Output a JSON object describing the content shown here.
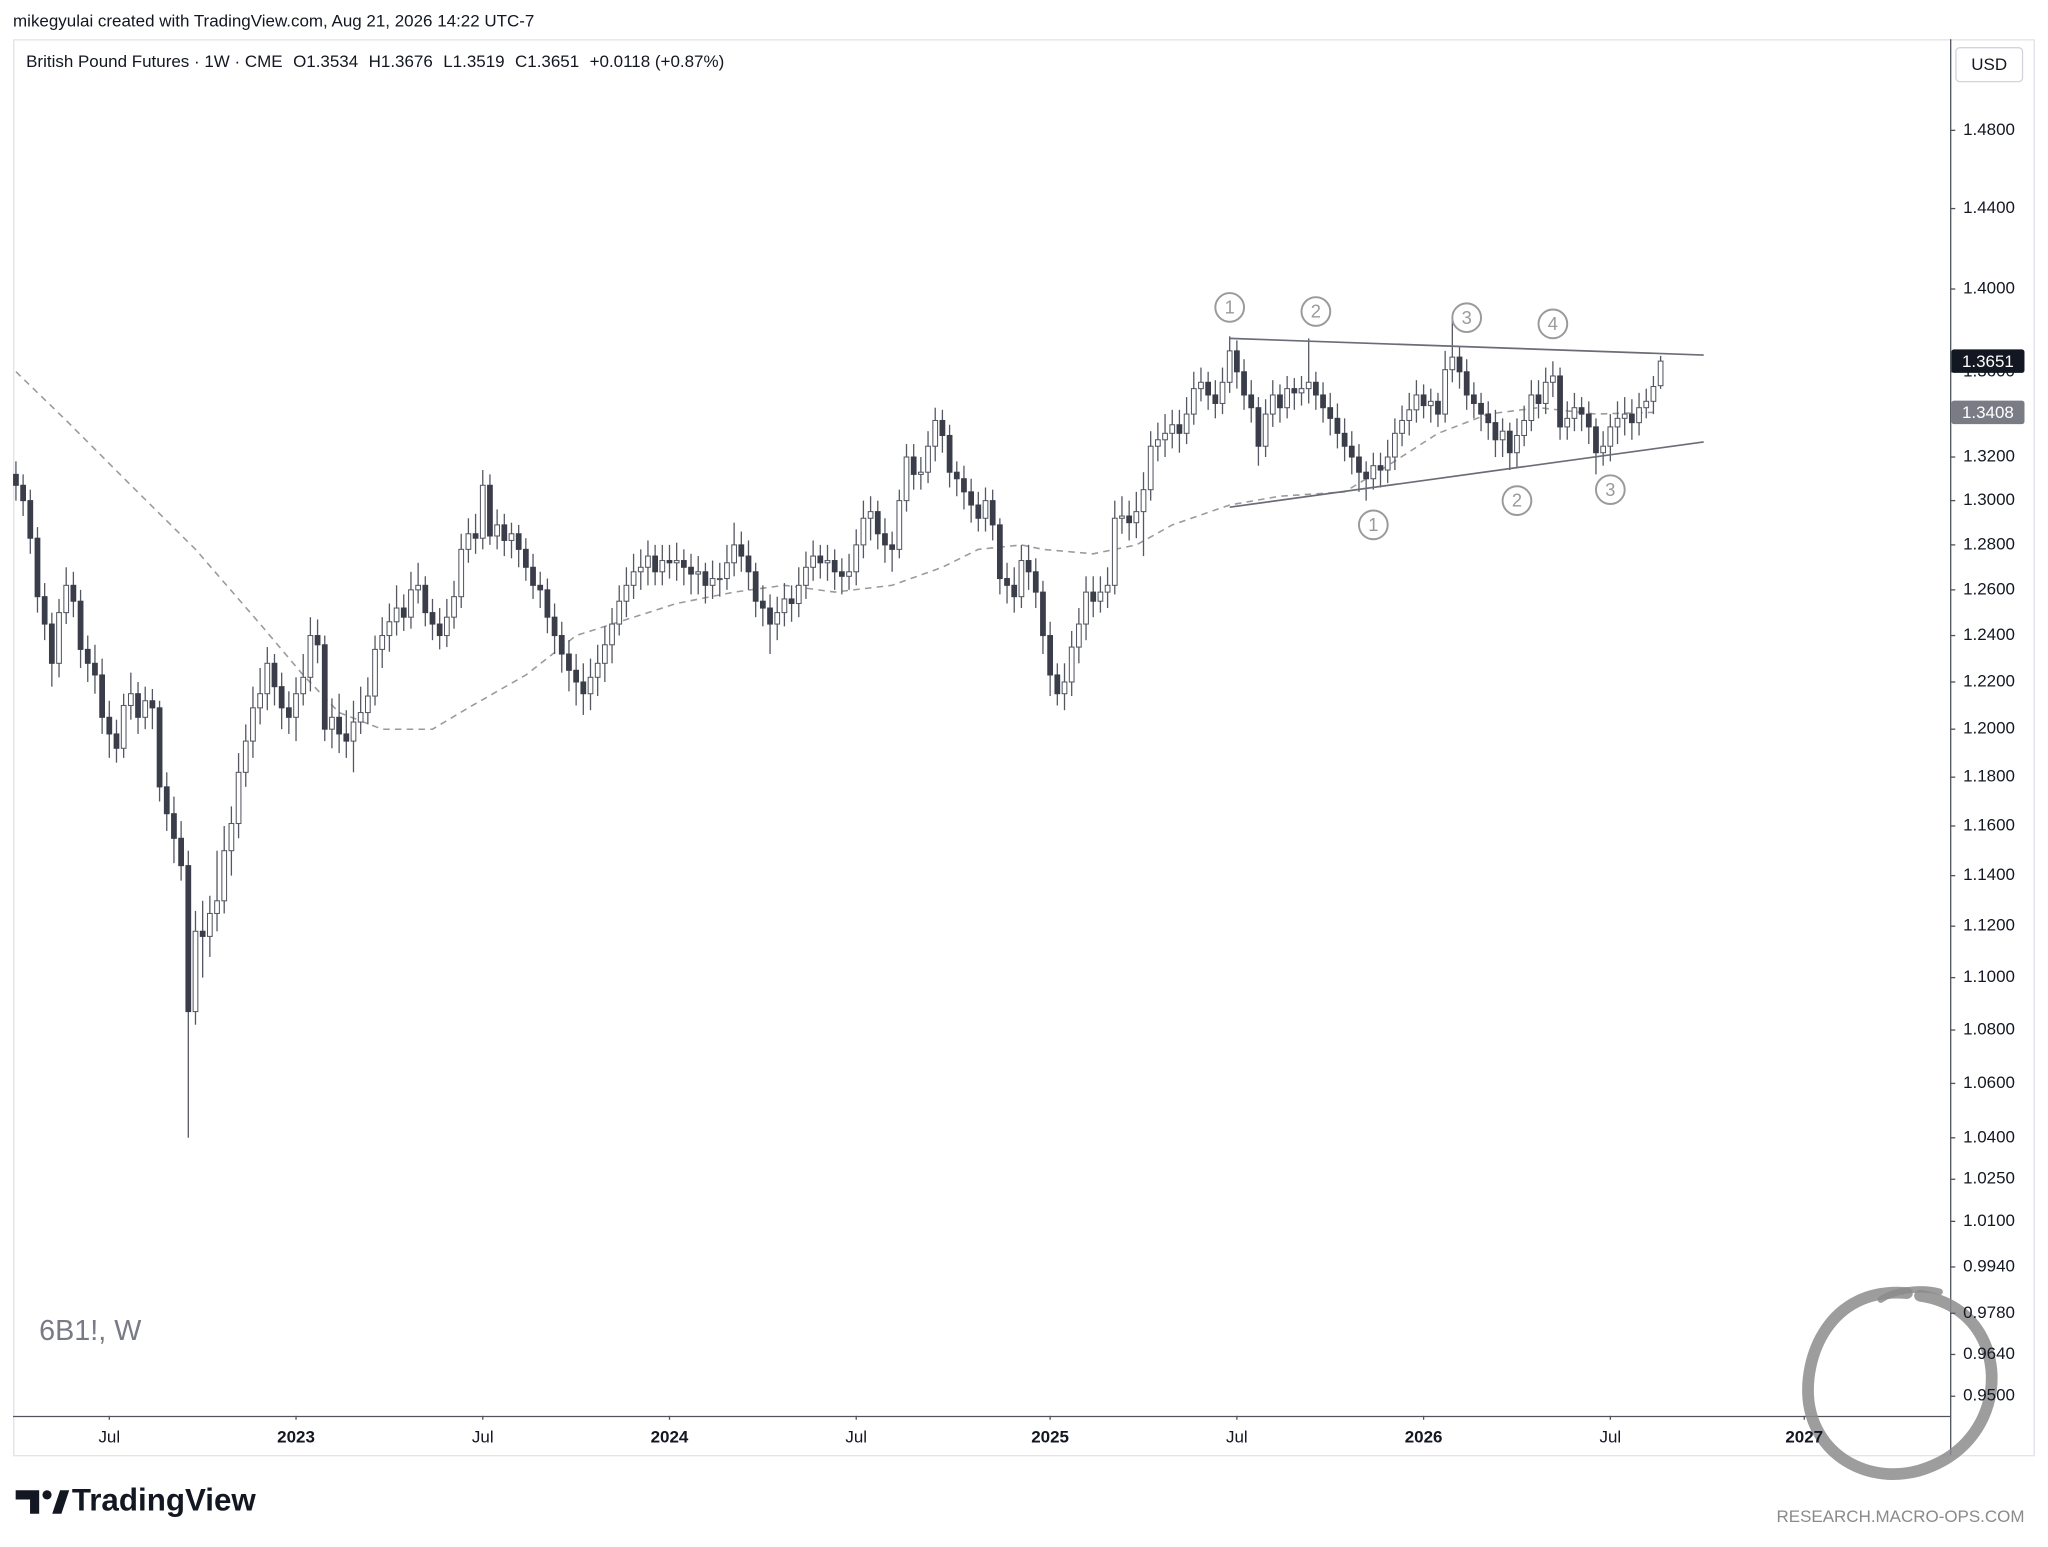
{
  "header": "mikegyulai created with TradingView.com, Aug 21, 2026 14:22 UTC-7",
  "branding": "TradingView",
  "footer": "RESEARCH.MACRO-OPS.COM",
  "chart_data": {
    "type": "candlestick",
    "title": "British Pound Futures · 1W · CME",
    "legend_values": [
      "O1.3534",
      "H1.3676",
      "L1.3519",
      "C1.3651",
      "+0.0118 (+0.87%)"
    ],
    "currency": "USD",
    "watermark": "6B1!, W",
    "up_color": "#ffffff",
    "down_color": "#3a3d4a",
    "log_scale": true,
    "grid": false,
    "ylim": [
      0.9435,
      1.528
    ],
    "yticks": [
      {
        "value": 1.48,
        "label": "1.4800"
      },
      {
        "value": 1.44,
        "label": "1.4400"
      },
      {
        "value": 1.4,
        "label": "1.4000"
      },
      {
        "value": 1.36,
        "label": "1.3600"
      },
      {
        "value": 1.32,
        "label": "1.3200"
      },
      {
        "value": 1.3,
        "label": "1.3000"
      },
      {
        "value": 1.28,
        "label": "1.2800"
      },
      {
        "value": 1.26,
        "label": "1.2600"
      },
      {
        "value": 1.24,
        "label": "1.2400"
      },
      {
        "value": 1.22,
        "label": "1.2200"
      },
      {
        "value": 1.2,
        "label": "1.2000"
      },
      {
        "value": 1.18,
        "label": "1.1800"
      },
      {
        "value": 1.16,
        "label": "1.1600"
      },
      {
        "value": 1.14,
        "label": "1.1400"
      },
      {
        "value": 1.12,
        "label": "1.1200"
      },
      {
        "value": 1.1,
        "label": "1.1000"
      },
      {
        "value": 1.08,
        "label": "1.0800"
      },
      {
        "value": 1.06,
        "label": "1.0600"
      },
      {
        "value": 1.04,
        "label": "1.0400"
      },
      {
        "value": 1.025,
        "label": "1.0250"
      },
      {
        "value": 1.01,
        "label": "1.0100"
      },
      {
        "value": 0.994,
        "label": "0.9940"
      },
      {
        "value": 0.978,
        "label": "0.9780"
      },
      {
        "value": 0.964,
        "label": "0.9640"
      },
      {
        "value": 0.95,
        "label": "0.9500"
      }
    ],
    "xlim": [
      -0.4,
      269.3
    ],
    "xticks": [
      {
        "value": 13,
        "label": "Jul"
      },
      {
        "value": 39,
        "label": "2023"
      },
      {
        "value": 65,
        "label": "Jul"
      },
      {
        "value": 91,
        "label": "2024"
      },
      {
        "value": 117,
        "label": "Jul"
      },
      {
        "value": 144,
        "label": "2025"
      },
      {
        "value": 170,
        "label": "Jul"
      },
      {
        "value": 196,
        "label": "2026"
      },
      {
        "value": 222,
        "label": "Jul"
      },
      {
        "value": 249,
        "label": "2027"
      }
    ],
    "open": [
      1.312,
      1.307,
      1.3,
      1.283,
      1.257,
      1.245,
      1.228,
      1.25,
      1.262,
      1.255,
      1.234,
      1.228,
      1.223,
      1.205,
      1.198,
      1.192,
      1.21,
      1.215,
      1.205,
      1.212,
      1.209,
      1.176,
      1.165,
      1.155,
      1.144,
      1.087,
      1.118,
      1.116,
      1.125,
      1.13,
      1.15,
      1.161,
      1.182,
      1.195,
      1.209,
      1.215,
      1.228,
      1.218,
      1.209,
      1.205,
      1.215,
      1.222,
      1.24,
      1.236,
      1.2,
      1.205,
      1.198,
      1.195,
      1.203,
      1.207,
      1.214,
      1.234,
      1.24,
      1.246,
      1.252,
      1.248,
      1.26,
      1.262,
      1.25,
      1.245,
      1.24,
      1.248,
      1.257,
      1.278,
      1.285,
      1.283,
      1.307,
      1.284,
      1.289,
      1.282,
      1.285,
      1.278,
      1.27,
      1.262,
      1.26,
      1.248,
      1.24,
      1.232,
      1.225,
      1.22,
      1.215,
      1.222,
      1.228,
      1.236,
      1.245,
      1.255,
      1.262,
      1.268,
      1.27,
      1.275,
      1.268,
      1.273,
      1.272,
      1.273,
      1.27,
      1.267,
      1.268,
      1.262,
      1.265,
      1.265,
      1.272,
      1.28,
      1.275,
      1.268,
      1.255,
      1.252,
      1.245,
      1.25,
      1.256,
      1.254,
      1.262,
      1.27,
      1.275,
      1.272,
      1.273,
      1.268,
      1.266,
      1.268,
      1.28,
      1.292,
      1.295,
      1.285,
      1.28,
      1.278,
      1.3,
      1.32,
      1.312,
      1.313,
      1.325,
      1.337,
      1.33,
      1.313,
      1.31,
      1.304,
      1.298,
      1.292,
      1.3,
      1.289,
      1.265,
      1.262,
      1.257,
      1.273,
      1.268,
      1.259,
      1.24,
      1.223,
      1.215,
      1.22,
      1.235,
      1.245,
      1.259,
      1.255,
      1.259,
      1.262,
      1.292,
      1.293,
      1.29,
      1.295,
      1.305,
      1.325,
      1.328,
      1.331,
      1.335,
      1.331,
      1.34,
      1.352,
      1.355,
      1.349,
      1.345,
      1.355,
      1.37,
      1.36,
      1.349,
      1.343,
      1.325,
      1.34,
      1.349,
      1.343,
      1.352,
      1.35,
      1.352,
      1.355,
      1.349,
      1.343,
      1.338,
      1.331,
      1.325,
      1.32,
      1.313,
      1.31,
      1.316,
      1.314,
      1.32,
      1.331,
      1.337,
      1.342,
      1.349,
      1.344,
      1.346,
      1.34,
      1.361,
      1.367,
      1.36,
      1.349,
      1.345,
      1.34,
      1.336,
      1.328,
      1.332,
      1.322,
      1.33,
      1.337,
      1.349,
      1.345,
      1.355,
      1.358,
      1.334,
      1.338,
      1.343,
      1.34,
      1.334,
      1.322,
      1.325,
      1.334,
      1.338,
      1.34,
      1.336,
      1.343,
      1.346,
      1.3534
    ],
    "high": [
      1.318,
      1.312,
      1.305,
      1.288,
      1.263,
      1.25,
      1.256,
      1.27,
      1.268,
      1.26,
      1.24,
      1.236,
      1.23,
      1.212,
      1.204,
      1.215,
      1.224,
      1.22,
      1.218,
      1.217,
      1.212,
      1.182,
      1.172,
      1.162,
      1.15,
      1.126,
      1.13,
      1.132,
      1.15,
      1.16,
      1.168,
      1.19,
      1.202,
      1.218,
      1.226,
      1.235,
      1.232,
      1.224,
      1.216,
      1.222,
      1.232,
      1.248,
      1.247,
      1.24,
      1.213,
      1.215,
      1.208,
      1.212,
      1.218,
      1.222,
      1.24,
      1.248,
      1.254,
      1.262,
      1.258,
      1.268,
      1.272,
      1.266,
      1.256,
      1.252,
      1.256,
      1.264,
      1.285,
      1.292,
      1.294,
      1.314,
      1.312,
      1.296,
      1.294,
      1.29,
      1.289,
      1.283,
      1.276,
      1.268,
      1.265,
      1.254,
      1.246,
      1.238,
      1.232,
      1.228,
      1.23,
      1.236,
      1.244,
      1.252,
      1.262,
      1.27,
      1.276,
      1.278,
      1.282,
      1.28,
      1.28,
      1.28,
      1.281,
      1.278,
      1.276,
      1.275,
      1.272,
      1.273,
      1.272,
      1.28,
      1.29,
      1.286,
      1.282,
      1.272,
      1.262,
      1.258,
      1.257,
      1.263,
      1.262,
      1.27,
      1.277,
      1.282,
      1.28,
      1.28,
      1.278,
      1.274,
      1.276,
      1.287,
      1.3,
      1.302,
      1.3,
      1.292,
      1.286,
      1.305,
      1.326,
      1.326,
      1.32,
      1.332,
      1.343,
      1.342,
      1.335,
      1.318,
      1.316,
      1.31,
      1.304,
      1.306,
      1.305,
      1.292,
      1.272,
      1.27,
      1.28,
      1.28,
      1.274,
      1.264,
      1.246,
      1.228,
      1.228,
      1.242,
      1.252,
      1.266,
      1.266,
      1.266,
      1.27,
      1.3,
      1.302,
      1.3,
      1.304,
      1.313,
      1.332,
      1.336,
      1.34,
      1.342,
      1.342,
      1.348,
      1.36,
      1.362,
      1.36,
      1.356,
      1.362,
      1.377,
      1.375,
      1.366,
      1.356,
      1.348,
      1.347,
      1.356,
      1.354,
      1.358,
      1.357,
      1.358,
      1.376,
      1.36,
      1.355,
      1.35,
      1.345,
      1.338,
      1.332,
      1.326,
      1.318,
      1.322,
      1.322,
      1.328,
      1.338,
      1.344,
      1.35,
      1.356,
      1.354,
      1.352,
      1.35,
      1.37,
      1.385,
      1.372,
      1.366,
      1.355,
      1.35,
      1.346,
      1.342,
      1.338,
      1.336,
      1.338,
      1.344,
      1.356,
      1.356,
      1.362,
      1.365,
      1.362,
      1.346,
      1.35,
      1.348,
      1.346,
      1.338,
      1.332,
      1.34,
      1.346,
      1.348,
      1.347,
      1.35,
      1.352,
      1.358,
      1.3676
    ],
    "low": [
      1.3,
      1.293,
      1.276,
      1.25,
      1.238,
      1.218,
      1.222,
      1.245,
      1.248,
      1.226,
      1.22,
      1.215,
      1.198,
      1.188,
      1.186,
      1.188,
      1.204,
      1.198,
      1.2,
      1.2,
      1.17,
      1.158,
      1.145,
      1.138,
      1.04,
      1.082,
      1.1,
      1.108,
      1.118,
      1.125,
      1.14,
      1.155,
      1.176,
      1.188,
      1.202,
      1.208,
      1.21,
      1.2,
      1.198,
      1.195,
      1.21,
      1.216,
      1.228,
      1.195,
      1.192,
      1.19,
      1.188,
      1.182,
      1.198,
      1.202,
      1.21,
      1.226,
      1.233,
      1.24,
      1.242,
      1.243,
      1.254,
      1.244,
      1.238,
      1.234,
      1.235,
      1.243,
      1.252,
      1.272,
      1.276,
      1.278,
      1.28,
      1.278,
      1.275,
      1.274,
      1.27,
      1.264,
      1.256,
      1.252,
      1.241,
      1.232,
      1.224,
      1.216,
      1.21,
      1.206,
      1.208,
      1.214,
      1.22,
      1.228,
      1.24,
      1.248,
      1.256,
      1.26,
      1.262,
      1.262,
      1.262,
      1.265,
      1.264,
      1.262,
      1.258,
      1.258,
      1.254,
      1.256,
      1.257,
      1.26,
      1.266,
      1.268,
      1.26,
      1.248,
      1.244,
      1.232,
      1.238,
      1.244,
      1.246,
      1.248,
      1.256,
      1.264,
      1.265,
      1.264,
      1.26,
      1.258,
      1.26,
      1.262,
      1.274,
      1.282,
      1.278,
      1.272,
      1.268,
      1.274,
      1.295,
      1.305,
      1.305,
      1.308,
      1.318,
      1.322,
      1.306,
      1.302,
      1.296,
      1.29,
      1.286,
      1.286,
      1.282,
      1.258,
      1.254,
      1.25,
      1.252,
      1.26,
      1.252,
      1.232,
      1.214,
      1.21,
      1.208,
      1.214,
      1.228,
      1.238,
      1.248,
      1.25,
      1.252,
      1.258,
      1.285,
      1.282,
      1.283,
      1.275,
      1.3,
      1.318,
      1.32,
      1.324,
      1.322,
      1.326,
      1.335,
      1.346,
      1.342,
      1.338,
      1.34,
      1.35,
      1.352,
      1.342,
      1.336,
      1.316,
      1.32,
      1.334,
      1.336,
      1.338,
      1.342,
      1.344,
      1.345,
      1.342,
      1.336,
      1.33,
      1.324,
      1.318,
      1.312,
      1.304,
      1.3,
      1.305,
      1.306,
      1.308,
      1.314,
      1.325,
      1.33,
      1.336,
      1.338,
      1.336,
      1.334,
      1.336,
      1.355,
      1.352,
      1.342,
      1.338,
      1.332,
      1.328,
      1.32,
      1.32,
      1.314,
      1.315,
      1.325,
      1.332,
      1.338,
      1.34,
      1.348,
      1.328,
      1.328,
      1.332,
      1.332,
      1.326,
      1.312,
      1.316,
      1.318,
      1.326,
      1.33,
      1.328,
      1.33,
      1.338,
      1.34,
      1.3519
    ],
    "close": [
      1.307,
      1.3,
      1.283,
      1.257,
      1.245,
      1.228,
      1.25,
      1.262,
      1.255,
      1.234,
      1.228,
      1.223,
      1.205,
      1.198,
      1.192,
      1.21,
      1.215,
      1.205,
      1.212,
      1.209,
      1.176,
      1.165,
      1.155,
      1.144,
      1.087,
      1.118,
      1.116,
      1.125,
      1.13,
      1.15,
      1.161,
      1.182,
      1.195,
      1.209,
      1.215,
      1.228,
      1.218,
      1.209,
      1.205,
      1.215,
      1.222,
      1.24,
      1.236,
      1.2,
      1.205,
      1.198,
      1.195,
      1.203,
      1.207,
      1.214,
      1.234,
      1.24,
      1.246,
      1.252,
      1.248,
      1.26,
      1.262,
      1.25,
      1.245,
      1.24,
      1.248,
      1.257,
      1.278,
      1.285,
      1.283,
      1.307,
      1.284,
      1.289,
      1.282,
      1.285,
      1.278,
      1.27,
      1.262,
      1.26,
      1.248,
      1.24,
      1.232,
      1.225,
      1.22,
      1.215,
      1.222,
      1.228,
      1.236,
      1.245,
      1.255,
      1.262,
      1.268,
      1.27,
      1.275,
      1.268,
      1.273,
      1.272,
      1.273,
      1.27,
      1.267,
      1.268,
      1.262,
      1.265,
      1.265,
      1.272,
      1.28,
      1.275,
      1.268,
      1.255,
      1.252,
      1.245,
      1.25,
      1.256,
      1.254,
      1.262,
      1.27,
      1.275,
      1.272,
      1.273,
      1.268,
      1.266,
      1.268,
      1.28,
      1.292,
      1.295,
      1.285,
      1.28,
      1.278,
      1.3,
      1.32,
      1.312,
      1.313,
      1.325,
      1.337,
      1.33,
      1.313,
      1.31,
      1.304,
      1.298,
      1.292,
      1.3,
      1.289,
      1.265,
      1.262,
      1.257,
      1.273,
      1.268,
      1.259,
      1.24,
      1.223,
      1.215,
      1.22,
      1.235,
      1.245,
      1.259,
      1.255,
      1.259,
      1.262,
      1.292,
      1.293,
      1.29,
      1.295,
      1.305,
      1.325,
      1.328,
      1.331,
      1.335,
      1.331,
      1.34,
      1.352,
      1.355,
      1.349,
      1.345,
      1.355,
      1.37,
      1.36,
      1.349,
      1.343,
      1.325,
      1.34,
      1.349,
      1.343,
      1.352,
      1.35,
      1.352,
      1.355,
      1.349,
      1.343,
      1.338,
      1.331,
      1.325,
      1.32,
      1.313,
      1.31,
      1.316,
      1.314,
      1.32,
      1.331,
      1.337,
      1.342,
      1.349,
      1.344,
      1.346,
      1.34,
      1.361,
      1.367,
      1.36,
      1.349,
      1.345,
      1.34,
      1.336,
      1.328,
      1.332,
      1.322,
      1.33,
      1.337,
      1.349,
      1.345,
      1.355,
      1.358,
      1.334,
      1.338,
      1.343,
      1.34,
      1.334,
      1.322,
      1.325,
      1.334,
      1.338,
      1.34,
      1.336,
      1.343,
      1.346,
      1.353,
      1.3651
    ],
    "moving_average": {
      "color": "#9a9a9a",
      "x": [
        0,
        7,
        16,
        25,
        34,
        40,
        45,
        51,
        58,
        63,
        71,
        78,
        85,
        92,
        100,
        107,
        114,
        122,
        129,
        134,
        140,
        143,
        150,
        156,
        161,
        169,
        176,
        185,
        191,
        198,
        205,
        212,
        220,
        228
      ],
      "values": [
        1.36,
        1.337,
        1.307,
        1.278,
        1.245,
        1.223,
        1.207,
        1.2,
        1.2,
        1.209,
        1.223,
        1.24,
        1.247,
        1.254,
        1.259,
        1.262,
        1.259,
        1.262,
        1.27,
        1.278,
        1.28,
        1.278,
        1.276,
        1.28,
        1.289,
        1.298,
        1.302,
        1.304,
        1.316,
        1.331,
        1.34,
        1.343,
        1.34,
        1.3408
      ]
    },
    "trendlines": [
      {
        "x": [
          169,
          235
        ],
        "y": [
          1.376,
          1.368
        ]
      },
      {
        "x": [
          169,
          235
        ],
        "y": [
          1.297,
          1.327
        ]
      }
    ],
    "annotations": [
      {
        "text": "1",
        "x": 169,
        "y": 1.391
      },
      {
        "text": "2",
        "x": 181,
        "y": 1.389
      },
      {
        "text": "3",
        "x": 202,
        "y": 1.386
      },
      {
        "text": "4",
        "x": 214,
        "y": 1.383
      },
      {
        "text": "1",
        "x": 189,
        "y": 1.289
      },
      {
        "text": "2",
        "x": 209,
        "y": 1.3
      },
      {
        "text": "3",
        "x": 222,
        "y": 1.305
      }
    ]
  }
}
